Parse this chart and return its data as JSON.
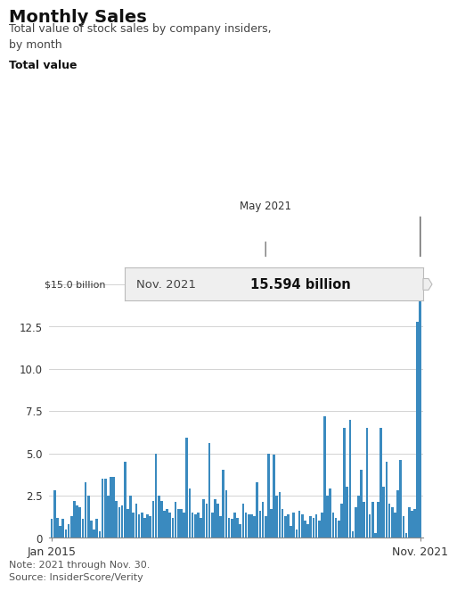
{
  "title": "Monthly Sales",
  "subtitle": "Total value of stock sales by company insiders,\nby month",
  "ylabel_label": "Total value",
  "yticks": [
    0,
    2.5,
    5.0,
    7.5,
    10.0,
    12.5,
    15.0
  ],
  "xtick_labels": [
    "Jan 2015",
    "Nov. 2021"
  ],
  "note": "Note: 2021 through Nov. 30.\nSource: InsiderScore/Verity",
  "tooltip_label": "Nov. 2021",
  "tooltip_value": "15.594 billion",
  "may2021_label": "May 2021",
  "bar_color": "#3a8abf",
  "background_color": "#ffffff",
  "tooltip_bg": "#efefef",
  "values": [
    1.1,
    2.8,
    1.2,
    0.7,
    1.1,
    0.5,
    0.8,
    1.3,
    2.2,
    1.9,
    1.8,
    1.1,
    3.3,
    2.5,
    1.0,
    0.5,
    1.1,
    0.4,
    3.5,
    3.5,
    2.5,
    3.6,
    3.6,
    2.2,
    1.8,
    1.9,
    4.5,
    1.7,
    2.5,
    1.5,
    2.0,
    1.4,
    1.5,
    1.2,
    1.4,
    1.3,
    2.2,
    5.0,
    2.5,
    2.2,
    1.6,
    1.7,
    1.5,
    1.2,
    2.1,
    1.7,
    1.7,
    1.5,
    5.9,
    2.9,
    1.5,
    1.4,
    1.5,
    1.2,
    2.3,
    2.0,
    5.6,
    1.5,
    2.3,
    2.0,
    1.3,
    4.0,
    2.8,
    1.2,
    1.1,
    1.5,
    1.2,
    0.8,
    2.0,
    1.5,
    1.4,
    1.4,
    1.3,
    3.3,
    1.6,
    2.1,
    1.3,
    5.0,
    1.7,
    4.9,
    2.5,
    2.7,
    1.7,
    1.3,
    1.4,
    0.7,
    1.5,
    0.5,
    1.6,
    1.4,
    1.0,
    0.8,
    1.3,
    1.2,
    1.4,
    1.0,
    1.5,
    7.2,
    2.5,
    2.9,
    1.5,
    1.2,
    1.0,
    2.0,
    6.5,
    3.0,
    7.0,
    0.4,
    1.8,
    2.5,
    4.0,
    2.1,
    6.5,
    1.4,
    2.1,
    0.3,
    2.1,
    6.5,
    3.0,
    4.5,
    2.0,
    1.8,
    1.5,
    2.8,
    4.6,
    1.3,
    0.3,
    1.8,
    1.6,
    1.7,
    12.8,
    15.594
  ]
}
